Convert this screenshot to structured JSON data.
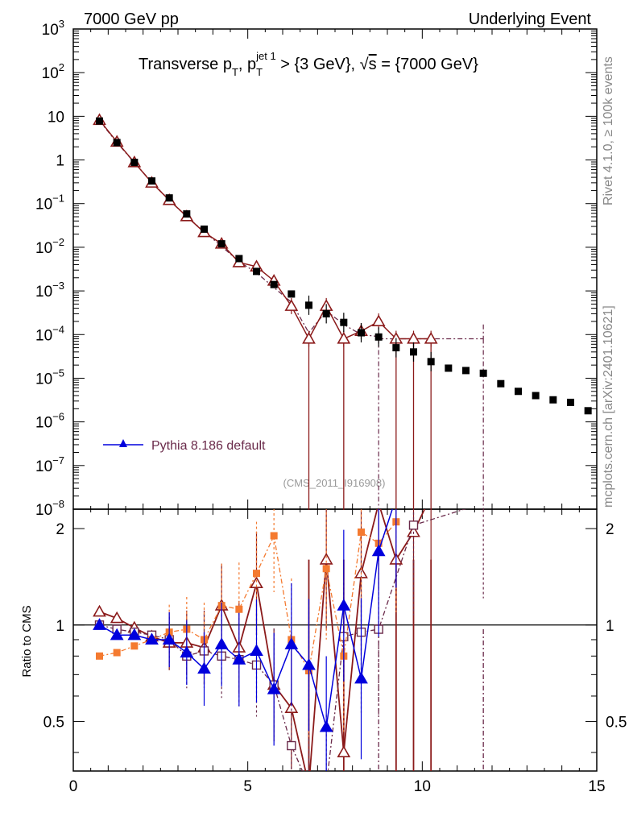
{
  "header": {
    "left": "7000 GeV pp",
    "right": "Underlying Event"
  },
  "side": {
    "rivet": "Rivet 4.1.0, ≥ 100k events",
    "mcplots": "mcplots.cern.ch [arXiv:2401.10621]"
  },
  "chart_data": {
    "type": "scatter",
    "title": "Transverse pT, pT^jet1 > {3 GeV}, √s = {7000 GeV}",
    "title_parts": {
      "a": "Transverse p",
      "a_sub": "T",
      "b": ", p",
      "b_sub": "T",
      "b_sup": "jet 1",
      "c": " > {3 GeV}, ",
      "sqrt": "√",
      "s": "s",
      "d": " = {7000 GeV}"
    },
    "analysis_id": "(CMS_2011_I916908)",
    "legend": [
      {
        "label": "Pythia 8.186 default",
        "color": "#0000dd"
      }
    ],
    "xlabel": "",
    "ylabel_ratio": "Ratio to CMS",
    "xlim": [
      0,
      15
    ],
    "ylim_main": [
      1e-08,
      1000
    ],
    "ylim_ratio": [
      0.35,
      2.3
    ],
    "x_ticks": [
      0,
      5,
      10,
      15
    ],
    "y_ticks_main": [
      {
        "v": 1000,
        "base": "10",
        "exp": "3"
      },
      {
        "v": 100,
        "base": "10",
        "exp": "2"
      },
      {
        "v": 10,
        "base": "10",
        "exp": ""
      },
      {
        "v": 1,
        "base": "1",
        "exp": ""
      },
      {
        "v": 0.1,
        "base": "10",
        "exp": "−1"
      },
      {
        "v": 0.01,
        "base": "10",
        "exp": "−2"
      },
      {
        "v": 0.001,
        "base": "10",
        "exp": "−3"
      },
      {
        "v": 0.0001,
        "base": "10",
        "exp": "−4"
      },
      {
        "v": 1e-05,
        "base": "10",
        "exp": "−5"
      },
      {
        "v": 1e-06,
        "base": "10",
        "exp": "−6"
      },
      {
        "v": 1e-07,
        "base": "10",
        "exp": "−7"
      },
      {
        "v": 1e-08,
        "base": "10",
        "exp": "−8"
      }
    ],
    "y_ticks_ratio": [
      {
        "v": 2,
        "label": "2"
      },
      {
        "v": 1,
        "label": "1"
      },
      {
        "v": 0.5,
        "label": "0.5"
      }
    ],
    "data": {
      "name": "CMS",
      "x": [
        0.75,
        1.25,
        1.75,
        2.25,
        2.75,
        3.25,
        3.75,
        4.25,
        4.75,
        5.25,
        5.75,
        6.25,
        6.75,
        7.25,
        7.75,
        8.25,
        8.75,
        9.25,
        9.75,
        10.25,
        10.75,
        11.25,
        11.75,
        12.25,
        12.75,
        13.25,
        13.75,
        14.25,
        14.75
      ],
      "y": [
        7.8,
        2.5,
        0.88,
        0.33,
        0.135,
        0.058,
        0.026,
        0.012,
        0.0055,
        0.0028,
        0.0014,
        0.00085,
        0.00047,
        0.0003,
        0.00019,
        0.00011,
        8.8e-05,
        5e-05,
        4e-05,
        2.4e-05,
        1.7e-05,
        1.5e-05,
        1.3e-05,
        7.5e-06,
        5e-06,
        4e-06,
        3.2e-06,
        2.8e-06,
        1.8e-06
      ]
    },
    "series": [
      {
        "name": "dark-red-open-triangle",
        "color": "#8b1a1a",
        "x": [
          0.75,
          1.25,
          1.75,
          2.25,
          2.75,
          3.25,
          3.75,
          4.25,
          4.75,
          5.25,
          5.75,
          6.25,
          6.75,
          7.25,
          7.75,
          8.25,
          8.75,
          9.25,
          9.75,
          10.25
        ],
        "y": [
          8.2,
          2.6,
          0.88,
          0.3,
          0.12,
          0.051,
          0.022,
          0.012,
          0.0045,
          0.0036,
          0.0017,
          0.00045,
          8e-05,
          0.00045,
          8e-05,
          0.00012,
          0.0002,
          8e-05,
          8e-05,
          8e-05
        ],
        "ratio": [
          1.1,
          1.05,
          0.98,
          0.92,
          0.88,
          0.88,
          0.85,
          1.15,
          0.85,
          1.35,
          0.65,
          0.55,
          0.2,
          1.6,
          0.4,
          1.45,
          2.4,
          1.6,
          1.95,
          2.6
        ],
        "drop": [
          6.75,
          7.75,
          9.25,
          9.75,
          10.25
        ]
      },
      {
        "name": "maroon-open-square",
        "color": "#6a2a4a",
        "x": [
          0.75,
          1.25,
          1.75,
          2.25,
          2.75,
          3.25,
          3.75,
          4.25,
          4.75,
          5.25,
          5.75,
          6.25,
          6.75,
          7.25,
          7.75,
          8.25,
          8.75,
          9.75,
          11.75
        ],
        "ratio": [
          1.0,
          0.97,
          0.95,
          0.93,
          0.9,
          0.8,
          0.83,
          0.8,
          0.78,
          0.75,
          0.65,
          0.42,
          0.3,
          0.25,
          0.92,
          0.95,
          0.97,
          2.05,
          2.4
        ],
        "drop": [
          8.75,
          11.75
        ]
      },
      {
        "name": "orange-filled-square",
        "color": "#f47a30",
        "x": [
          0.75,
          1.25,
          1.75,
          2.25,
          2.75,
          3.25,
          3.75,
          4.25,
          4.75,
          5.25,
          5.75,
          6.25,
          6.75,
          7.25,
          7.75,
          8.25,
          8.75,
          9.25
        ],
        "ratio": [
          0.8,
          0.82,
          0.86,
          0.9,
          0.95,
          0.97,
          0.9,
          1.15,
          1.12,
          1.45,
          1.9,
          0.9,
          0.72,
          1.5,
          0.8,
          1.95,
          1.8,
          2.1
        ]
      },
      {
        "name": "Pythia 8.186 default",
        "color": "#0000dd",
        "x": [
          0.75,
          1.25,
          1.75,
          2.25,
          2.75,
          3.25,
          3.75,
          4.25,
          4.75,
          5.25,
          5.75,
          6.25,
          6.75,
          7.25,
          7.75,
          8.25,
          8.75,
          9.25
        ],
        "ratio": [
          1.0,
          0.93,
          0.93,
          0.9,
          0.9,
          0.82,
          0.73,
          0.87,
          0.78,
          0.83,
          0.63,
          0.87,
          0.75,
          0.48,
          1.15,
          0.68,
          1.7,
          2.5
        ]
      }
    ]
  }
}
